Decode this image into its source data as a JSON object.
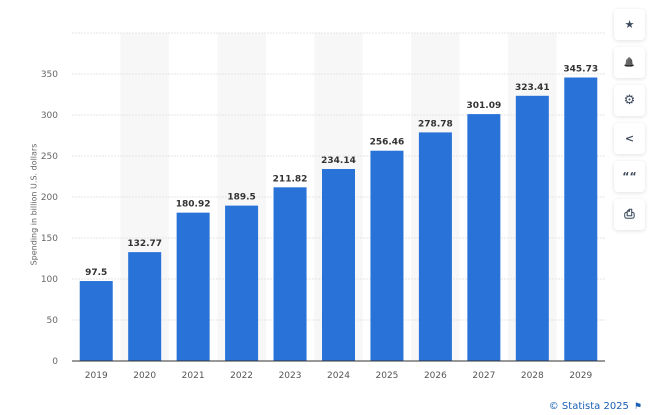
{
  "chart_data": {
    "type": "bar",
    "categories": [
      "2019",
      "2020",
      "2021",
      "2022",
      "2023",
      "2024",
      "2025",
      "2026",
      "2027",
      "2028",
      "2029"
    ],
    "values": [
      97.5,
      132.77,
      180.92,
      189.5,
      211.82,
      234.14,
      256.46,
      278.78,
      301.09,
      323.41,
      345.73
    ],
    "value_labels": [
      "97.5",
      "132.77",
      "180.92",
      "189.5",
      "211.82",
      "234.14",
      "256.46",
      "278.78",
      "301.09",
      "323.41",
      "345.73"
    ],
    "xlabel": "",
    "ylabel": "Spending in billion U.S. dollars",
    "ylim": [
      0,
      400
    ],
    "yticks": [
      0,
      50,
      100,
      150,
      200,
      250,
      300,
      350
    ],
    "grid": true,
    "bar_color": "#2872d8"
  },
  "sidebar": {
    "buttons": [
      {
        "icon": "star-icon",
        "glyph": "★"
      },
      {
        "icon": "bell-icon",
        "glyph": "🔔"
      },
      {
        "icon": "gear-icon",
        "glyph": "⚙"
      },
      {
        "icon": "share-icon",
        "glyph": "<"
      },
      {
        "icon": "quote-icon",
        "glyph": "““"
      },
      {
        "icon": "print-icon",
        "glyph": "⎙"
      }
    ]
  },
  "footer": {
    "copyright": "© Statista 2025",
    "flag_glyph": "⚑"
  }
}
